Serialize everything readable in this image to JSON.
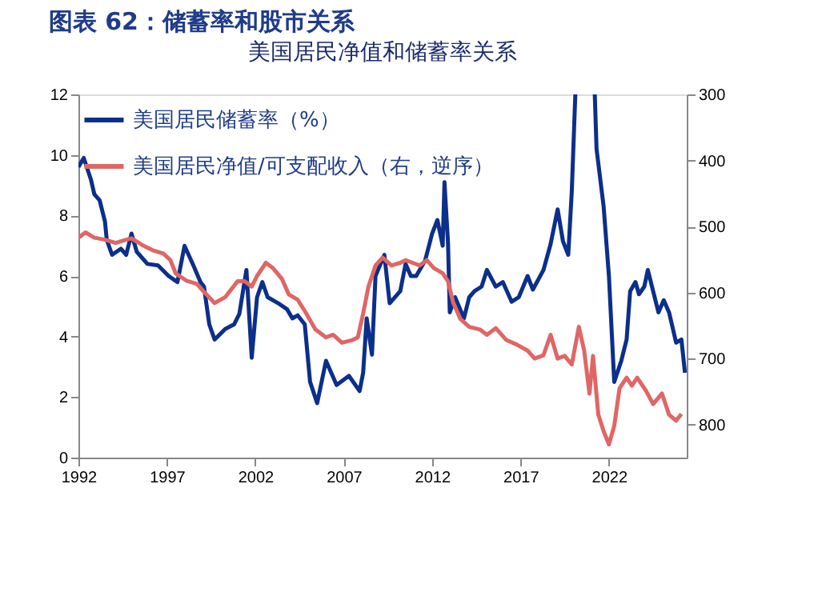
{
  "chart_data": {
    "type": "line",
    "title": "图表 62：储蓄率和股市关系",
    "subtitle": "美国居民净值和储蓄率关系",
    "xlim": [
      1992,
      2026.4
    ],
    "xticks": [
      1992,
      1997,
      2002,
      2007,
      2012,
      2017,
      2022
    ],
    "ylim": [
      0,
      12
    ],
    "yticks": [
      0,
      2,
      4,
      6,
      8,
      10,
      12
    ],
    "y2lim": [
      850,
      300
    ],
    "y2ticks": [
      300,
      400,
      500,
      600,
      700,
      800
    ],
    "legend": "top left",
    "grid": false,
    "line_style": "solid",
    "series": [
      {
        "name": "美国居民储蓄率（%）",
        "color": "#0b2f8a",
        "axis": "y",
        "x": [
          1992,
          1992.3,
          1992.7,
          1992.9,
          1993.2,
          1993.5,
          1993.6,
          1993.9,
          1994.4,
          1994.7,
          1995.0,
          1995.3,
          1995.9,
          1996.5,
          1997.1,
          1997.6,
          1998.0,
          1998.5,
          1998.9,
          1999.1,
          1999.4,
          1999.7,
          2000.3,
          2000.8,
          2001.1,
          2001.5,
          2001.8,
          2002.1,
          2002.4,
          2002.7,
          2003.3,
          2003.8,
          2004.1,
          2004.4,
          2004.8,
          2005.1,
          2005.5,
          2006.0,
          2006.6,
          2007.3,
          2007.9,
          2008.1,
          2008.3,
          2008.6,
          2008.8,
          2009.3,
          2009.6,
          2010.2,
          2010.5,
          2010.8,
          2011.1,
          2011.6,
          2012.0,
          2012.3,
          2012.6,
          2012.7,
          2012.9,
          2013.0,
          2013.3,
          2013.8,
          2014.1,
          2014.4,
          2014.8,
          2015.1,
          2015.6,
          2016.0,
          2016.5,
          2016.9,
          2017.4,
          2017.7,
          2018.3,
          2018.7,
          2019.1,
          2019.4,
          2019.7,
          2019.9,
          2020.1,
          2020.6,
          2021.2,
          2021.3,
          2021.7,
          2022.0,
          2022.3,
          2022.7,
          2023.0,
          2023.2,
          2023.5,
          2023.7,
          2024.0,
          2024.2,
          2024.5,
          2024.8,
          2025.1,
          2025.4,
          2025.8,
          2026.1,
          2026.3
        ],
        "values": [
          9.6,
          9.9,
          9.2,
          8.7,
          8.5,
          7.8,
          7.2,
          6.7,
          6.9,
          6.7,
          7.4,
          6.8,
          6.4,
          6.35,
          6.0,
          5.8,
          7.0,
          6.35,
          5.8,
          5.65,
          4.4,
          3.9,
          4.25,
          4.4,
          4.75,
          6.2,
          3.3,
          5.3,
          5.8,
          5.3,
          5.1,
          4.9,
          4.6,
          4.7,
          4.4,
          2.5,
          1.8,
          3.2,
          2.4,
          2.7,
          2.2,
          2.8,
          4.6,
          3.4,
          6.0,
          6.7,
          5.1,
          5.5,
          6.4,
          6.0,
          6.0,
          6.5,
          7.4,
          7.85,
          7.0,
          9.1,
          7.1,
          4.8,
          5.3,
          4.6,
          5.3,
          5.5,
          5.65,
          6.2,
          5.65,
          5.8,
          5.15,
          5.3,
          6.0,
          5.55,
          6.2,
          7.05,
          8.2,
          7.15,
          6.7,
          8.8,
          12,
          null,
          12,
          10.2,
          8.3,
          6.0,
          2.5,
          3.2,
          3.9,
          5.5,
          5.8,
          5.4,
          5.65,
          6.2,
          5.5,
          4.8,
          5.2,
          4.8,
          3.8,
          3.9,
          2.8
        ]
      },
      {
        "name": "美国居民净值/可支配收入（右，逆序）",
        "color": "#e06666",
        "axis": "y2",
        "x": [
          1992.0,
          1992.4,
          1992.9,
          1993.5,
          1994.1,
          1994.7,
          1995.0,
          1995.6,
          1996.2,
          1996.8,
          1997.2,
          1997.5,
          1998.1,
          1998.7,
          1999.1,
          1999.7,
          2000.3,
          2001.0,
          2001.4,
          2001.8,
          2002.1,
          2002.6,
          2003.0,
          2003.5,
          2003.9,
          2004.4,
          2004.8,
          2005.4,
          2006.0,
          2006.4,
          2006.9,
          2007.5,
          2007.8,
          2008.1,
          2008.4,
          2008.8,
          2009.2,
          2009.7,
          2010.2,
          2010.5,
          2010.9,
          2011.3,
          2011.7,
          2012.1,
          2012.6,
          2012.9,
          2013.2,
          2013.6,
          2014.1,
          2014.7,
          2015.1,
          2015.6,
          2016.2,
          2016.8,
          2017.4,
          2017.8,
          2018.3,
          2018.7,
          2019.1,
          2019.5,
          2019.9,
          2020.3,
          2020.6,
          2020.9,
          2021.1,
          2021.4,
          2021.7,
          2022.0,
          2022.3,
          2022.6,
          2023.0,
          2023.3,
          2023.6,
          2024.1,
          2024.5,
          2025.0,
          2025.4,
          2025.8,
          2026.1
        ],
        "values": [
          517,
          509,
          517,
          520,
          525,
          520,
          518,
          528,
          536,
          541,
          551,
          571,
          582,
          587,
          599,
          616,
          607,
          583,
          583,
          591,
          575,
          555,
          563,
          579,
          603,
          611,
          628,
          656,
          668,
          664,
          676,
          672,
          668,
          632,
          591,
          559,
          547,
          559,
          555,
          551,
          555,
          559,
          551,
          563,
          571,
          583,
          616,
          640,
          652,
          656,
          664,
          654,
          672,
          679,
          688,
          700,
          695,
          664,
          700,
          696,
          709,
          652,
          688,
          753,
          696,
          785,
          810,
          830,
          802,
          745,
          729,
          741,
          729,
          749,
          769,
          753,
          785,
          794,
          784
        ]
      }
    ]
  }
}
